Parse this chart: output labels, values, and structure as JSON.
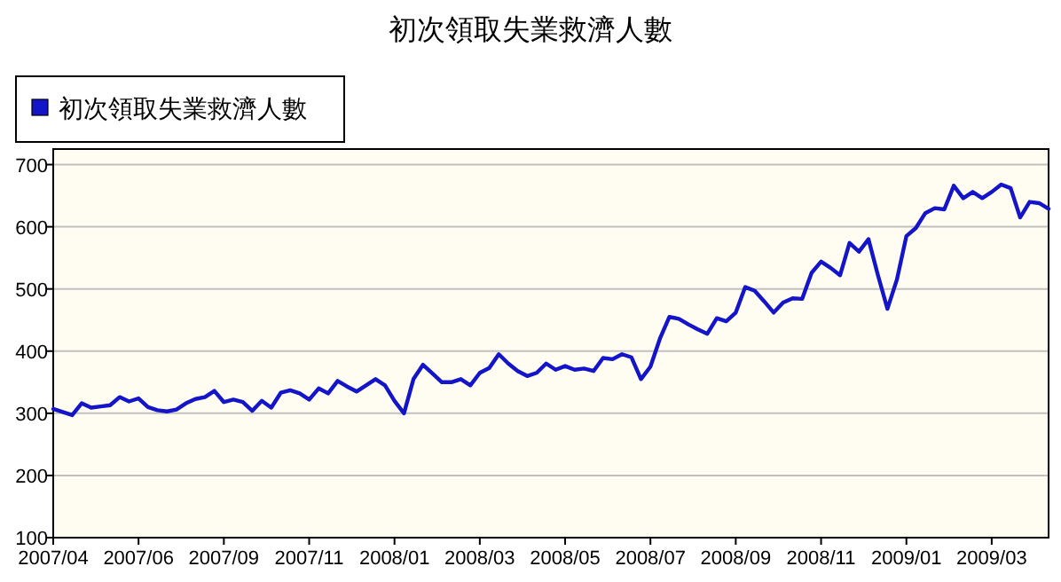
{
  "chart_data": {
    "type": "line",
    "title": "初次領取失業救濟人數",
    "categories": [
      "2007/04",
      null,
      null,
      null,
      null,
      null,
      null,
      null,
      null,
      "2007/06",
      null,
      null,
      null,
      null,
      null,
      null,
      null,
      null,
      "2007/09",
      null,
      null,
      null,
      null,
      null,
      null,
      null,
      null,
      "2007/11",
      null,
      null,
      null,
      null,
      null,
      null,
      null,
      null,
      "2008/01",
      null,
      null,
      null,
      null,
      null,
      null,
      null,
      null,
      "2008/03",
      null,
      null,
      null,
      null,
      null,
      null,
      null,
      null,
      "2008/05",
      null,
      null,
      null,
      null,
      null,
      null,
      null,
      null,
      "2008/07",
      null,
      null,
      null,
      null,
      null,
      null,
      null,
      null,
      "2008/09",
      null,
      null,
      null,
      null,
      null,
      null,
      null,
      null,
      "2008/11",
      null,
      null,
      null,
      null,
      null,
      null,
      null,
      null,
      "2009/01",
      null,
      null,
      null,
      null,
      null,
      null,
      null,
      null,
      "2009/03",
      null,
      null,
      null,
      null,
      null,
      null
    ],
    "series": [
      {
        "name": "初次領取失業救濟人數",
        "color": "#1414c8",
        "values": [
          307,
          302,
          297,
          316,
          309,
          311,
          313,
          326,
          319,
          324,
          310,
          305,
          303,
          306,
          316,
          323,
          326,
          336,
          318,
          322,
          318,
          304,
          320,
          309,
          333,
          337,
          332,
          322,
          340,
          332,
          352,
          343,
          335,
          345,
          355,
          345,
          320,
          300,
          355,
          378,
          364,
          350,
          350,
          355,
          345,
          365,
          373,
          395,
          380,
          368,
          360,
          365,
          380,
          370,
          376,
          370,
          372,
          368,
          389,
          387,
          395,
          390,
          355,
          375,
          420,
          455,
          452,
          443,
          435,
          428,
          453,
          448,
          462,
          503,
          497,
          480,
          462,
          478,
          485,
          484,
          526,
          544,
          534,
          522,
          574,
          560,
          580,
          522,
          468,
          515,
          585,
          598,
          622,
          630,
          628,
          666,
          646,
          656,
          646,
          656,
          668,
          662,
          615,
          640,
          638,
          629
        ]
      }
    ],
    "ylim": [
      100,
      725
    ],
    "yticks": [
      100,
      200,
      300,
      400,
      500,
      600,
      700
    ],
    "grid": "y",
    "legend": "top left"
  }
}
